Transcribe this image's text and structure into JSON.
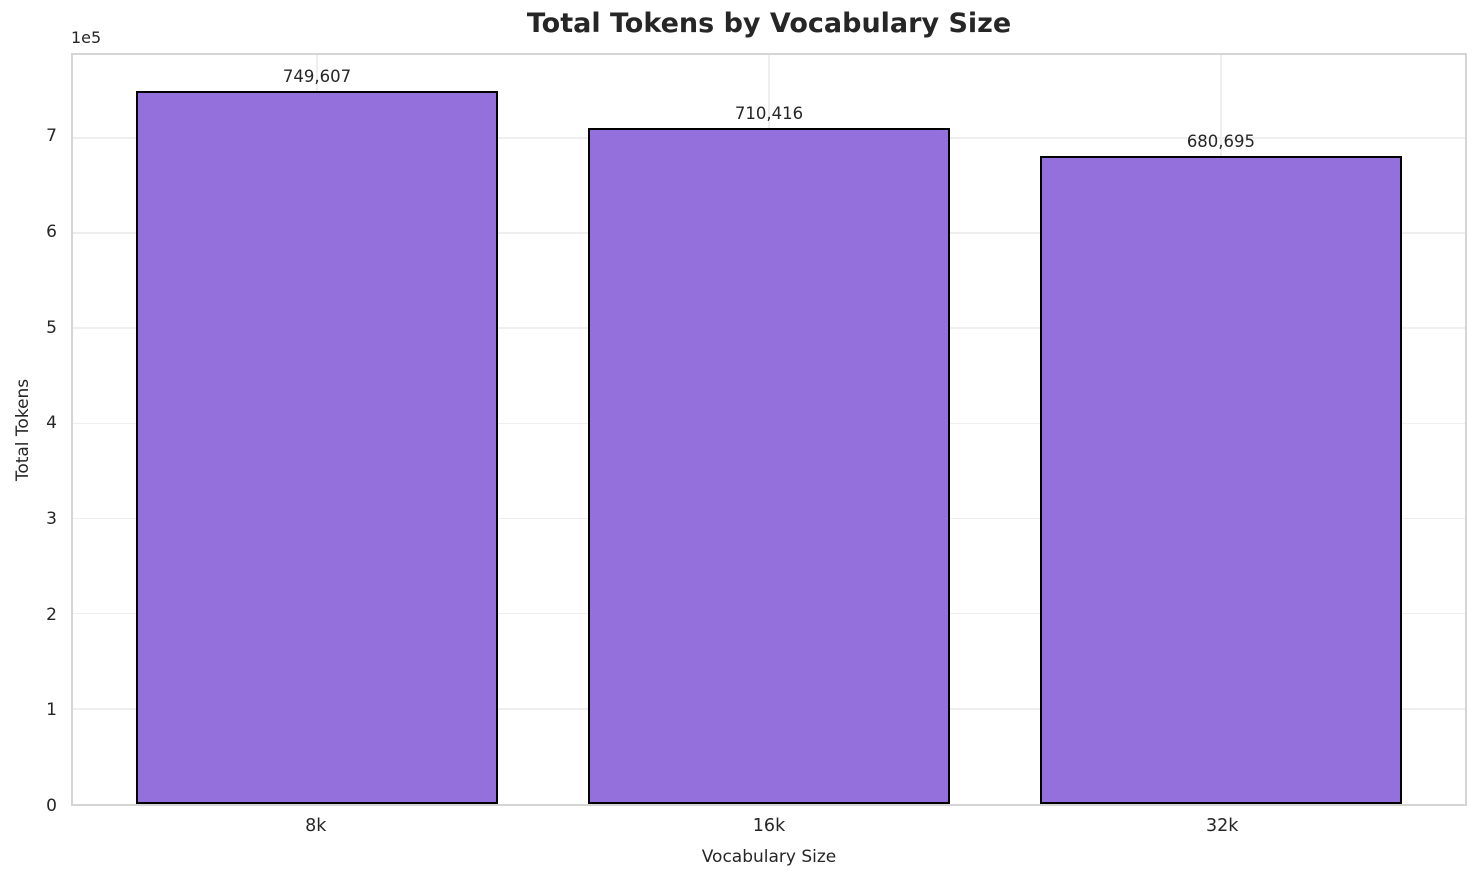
{
  "chart_data": {
    "type": "bar",
    "title": "Total Tokens by Vocabulary Size",
    "xlabel": "Vocabulary Size",
    "ylabel": "Total Tokens",
    "y_offset_label": "1e5",
    "categories": [
      "8k",
      "16k",
      "32k"
    ],
    "values": [
      749607,
      710416,
      680695
    ],
    "value_labels": [
      "749,607",
      "710,416",
      "680,695"
    ],
    "yticks": {
      "values": [
        0,
        100000,
        200000,
        300000,
        400000,
        500000,
        600000,
        700000
      ],
      "labels": [
        "0",
        "1",
        "2",
        "3",
        "4",
        "5",
        "6",
        "7"
      ]
    },
    "ylim": [
      0,
      787000
    ],
    "x_margin_units": 0.54,
    "bar_width_fraction": 0.8,
    "grid": true,
    "legend": "none",
    "bar_color": "#9370DB",
    "bar_edge_color": "#000000",
    "grid_color": "#eeeeee",
    "spine_color": "#d5d5d5",
    "text_color": "#262626"
  }
}
